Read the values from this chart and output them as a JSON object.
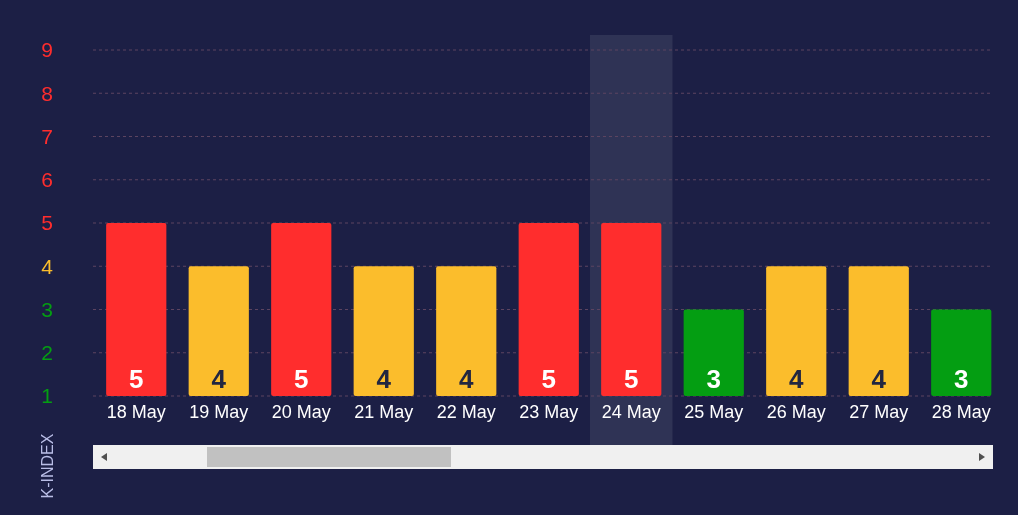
{
  "chart_data": {
    "type": "bar",
    "ylabel": "K-INDEX",
    "categories": [
      "18 May",
      "19 May",
      "20 May",
      "21 May",
      "22 May",
      "23 May",
      "24 May",
      "25 May",
      "26 May",
      "27 May",
      "28 May"
    ],
    "values": [
      5,
      4,
      5,
      4,
      4,
      5,
      5,
      3,
      4,
      4,
      3
    ],
    "colors": [
      "#ff2d2d",
      "#fbbd2c",
      "#ff2d2d",
      "#fbbd2c",
      "#fbbd2c",
      "#ff2d2d",
      "#ff2d2d",
      "#049e12",
      "#fbbd2c",
      "#fbbd2c",
      "#049e12"
    ],
    "data_labels": true,
    "ylim": [
      1,
      9
    ],
    "yticks": [
      1,
      2,
      3,
      4,
      5,
      6,
      7,
      8,
      9
    ],
    "grid": "y",
    "bands": [
      {
        "axis": "x",
        "from": "24 May",
        "to": "24 May",
        "color": "#2f3355"
      }
    ]
  }
}
